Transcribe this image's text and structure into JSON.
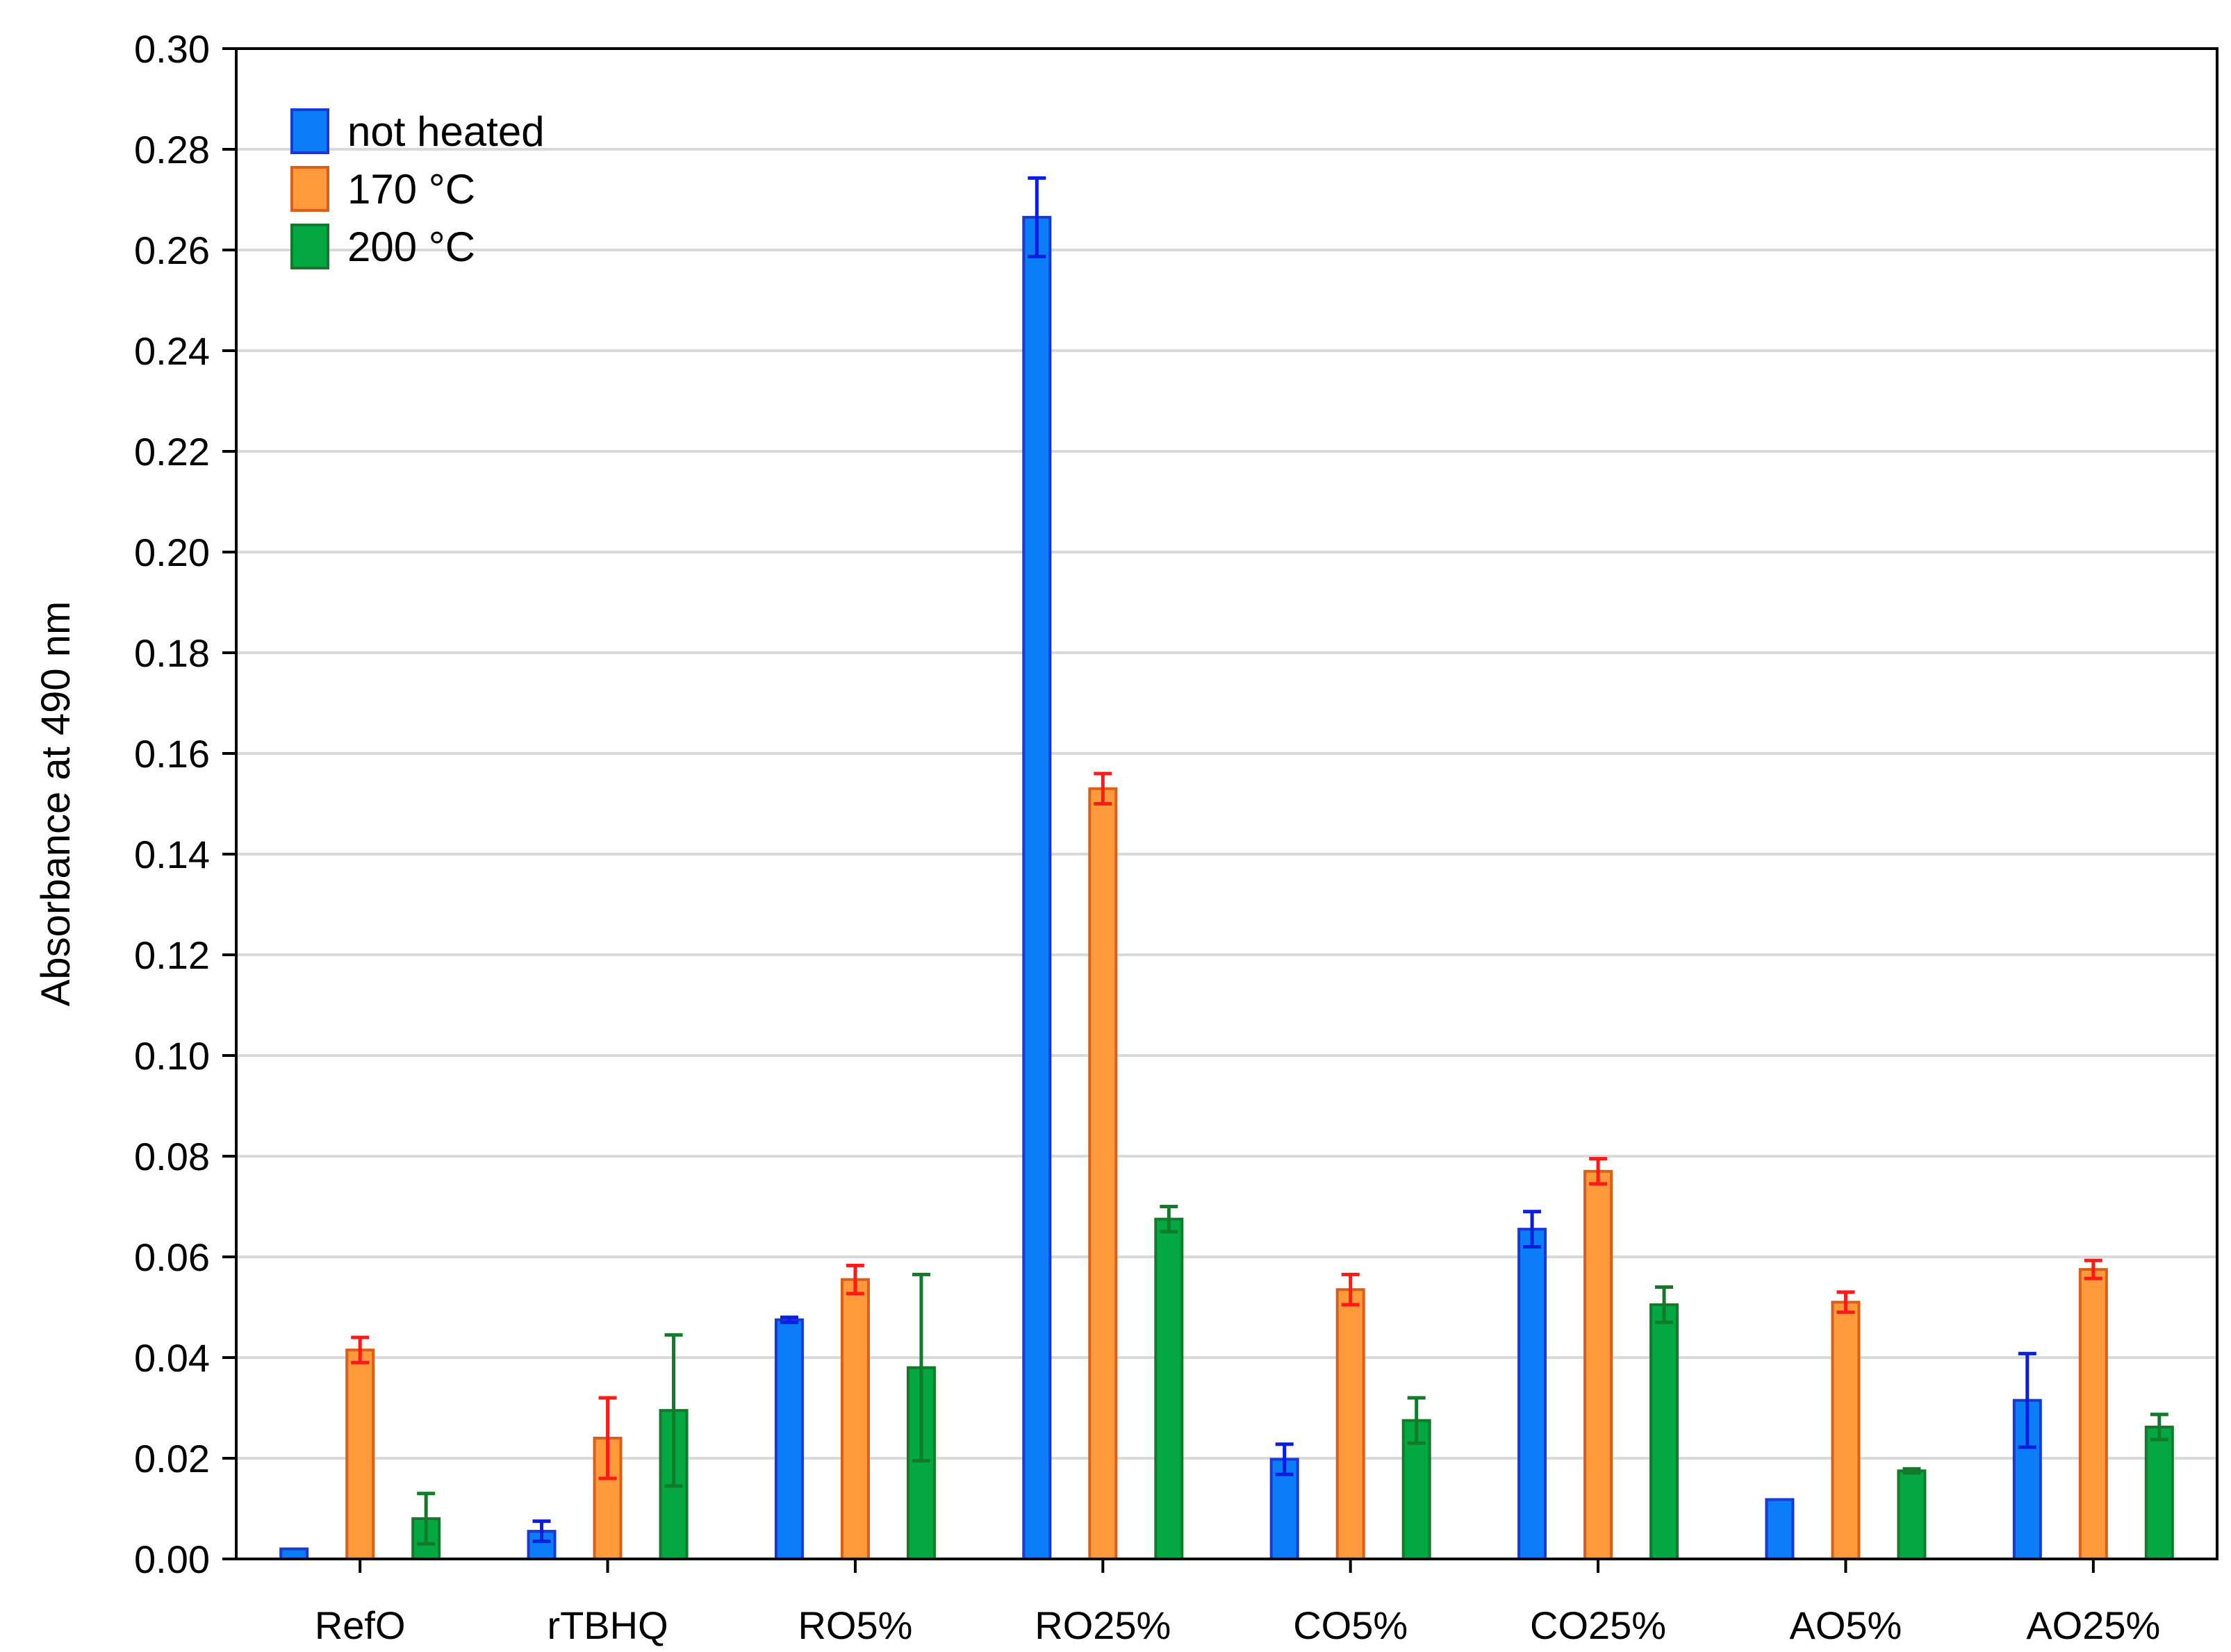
{
  "chart_data": {
    "type": "bar",
    "title": "",
    "xlabel": "",
    "ylabel": "Absorbance at 490 nm",
    "ylim": [
      0,
      0.3
    ],
    "yticks": [
      "0.00",
      "0.02",
      "0.04",
      "0.06",
      "0.08",
      "0.10",
      "0.12",
      "0.14",
      "0.16",
      "0.18",
      "0.20",
      "0.22",
      "0.24",
      "0.26",
      "0.28",
      "0.30"
    ],
    "grid": true,
    "legend_position": "top-left",
    "categories": [
      "RefO",
      "rTBHQ",
      "RO5%",
      "RO25%",
      "CO5%",
      "CO25%",
      "AO5%",
      "AO25%"
    ],
    "series": [
      {
        "name": "not heated",
        "color": "#0a7df7",
        "edge_color": "#1a39d4",
        "error_color": "#0b1ee0",
        "values": [
          0.002,
          0.0055,
          0.0475,
          0.2665,
          0.0198,
          0.0655,
          0.0118,
          0.0315
        ],
        "errors": [
          0.0,
          0.002,
          0.0005,
          0.0078,
          0.003,
          0.0035,
          0.0,
          0.0093
        ]
      },
      {
        "name": "170 °C",
        "color": "#ff9a3c",
        "edge_color": "#d95f1a",
        "error_color": "#ff1a1a",
        "values": [
          0.0415,
          0.024,
          0.0555,
          0.153,
          0.0535,
          0.077,
          0.051,
          0.0575
        ],
        "errors": [
          0.0025,
          0.008,
          0.0028,
          0.003,
          0.003,
          0.0025,
          0.002,
          0.0018
        ]
      },
      {
        "name": "200 °C",
        "color": "#03a843",
        "edge_color": "#137a2c",
        "error_color": "#137a2c",
        "values": [
          0.008,
          0.0295,
          0.038,
          0.0675,
          0.0275,
          0.0505,
          0.0175,
          0.0262
        ],
        "errors": [
          0.005,
          0.015,
          0.0185,
          0.0025,
          0.0045,
          0.0035,
          0.0004,
          0.0025
        ]
      }
    ]
  }
}
